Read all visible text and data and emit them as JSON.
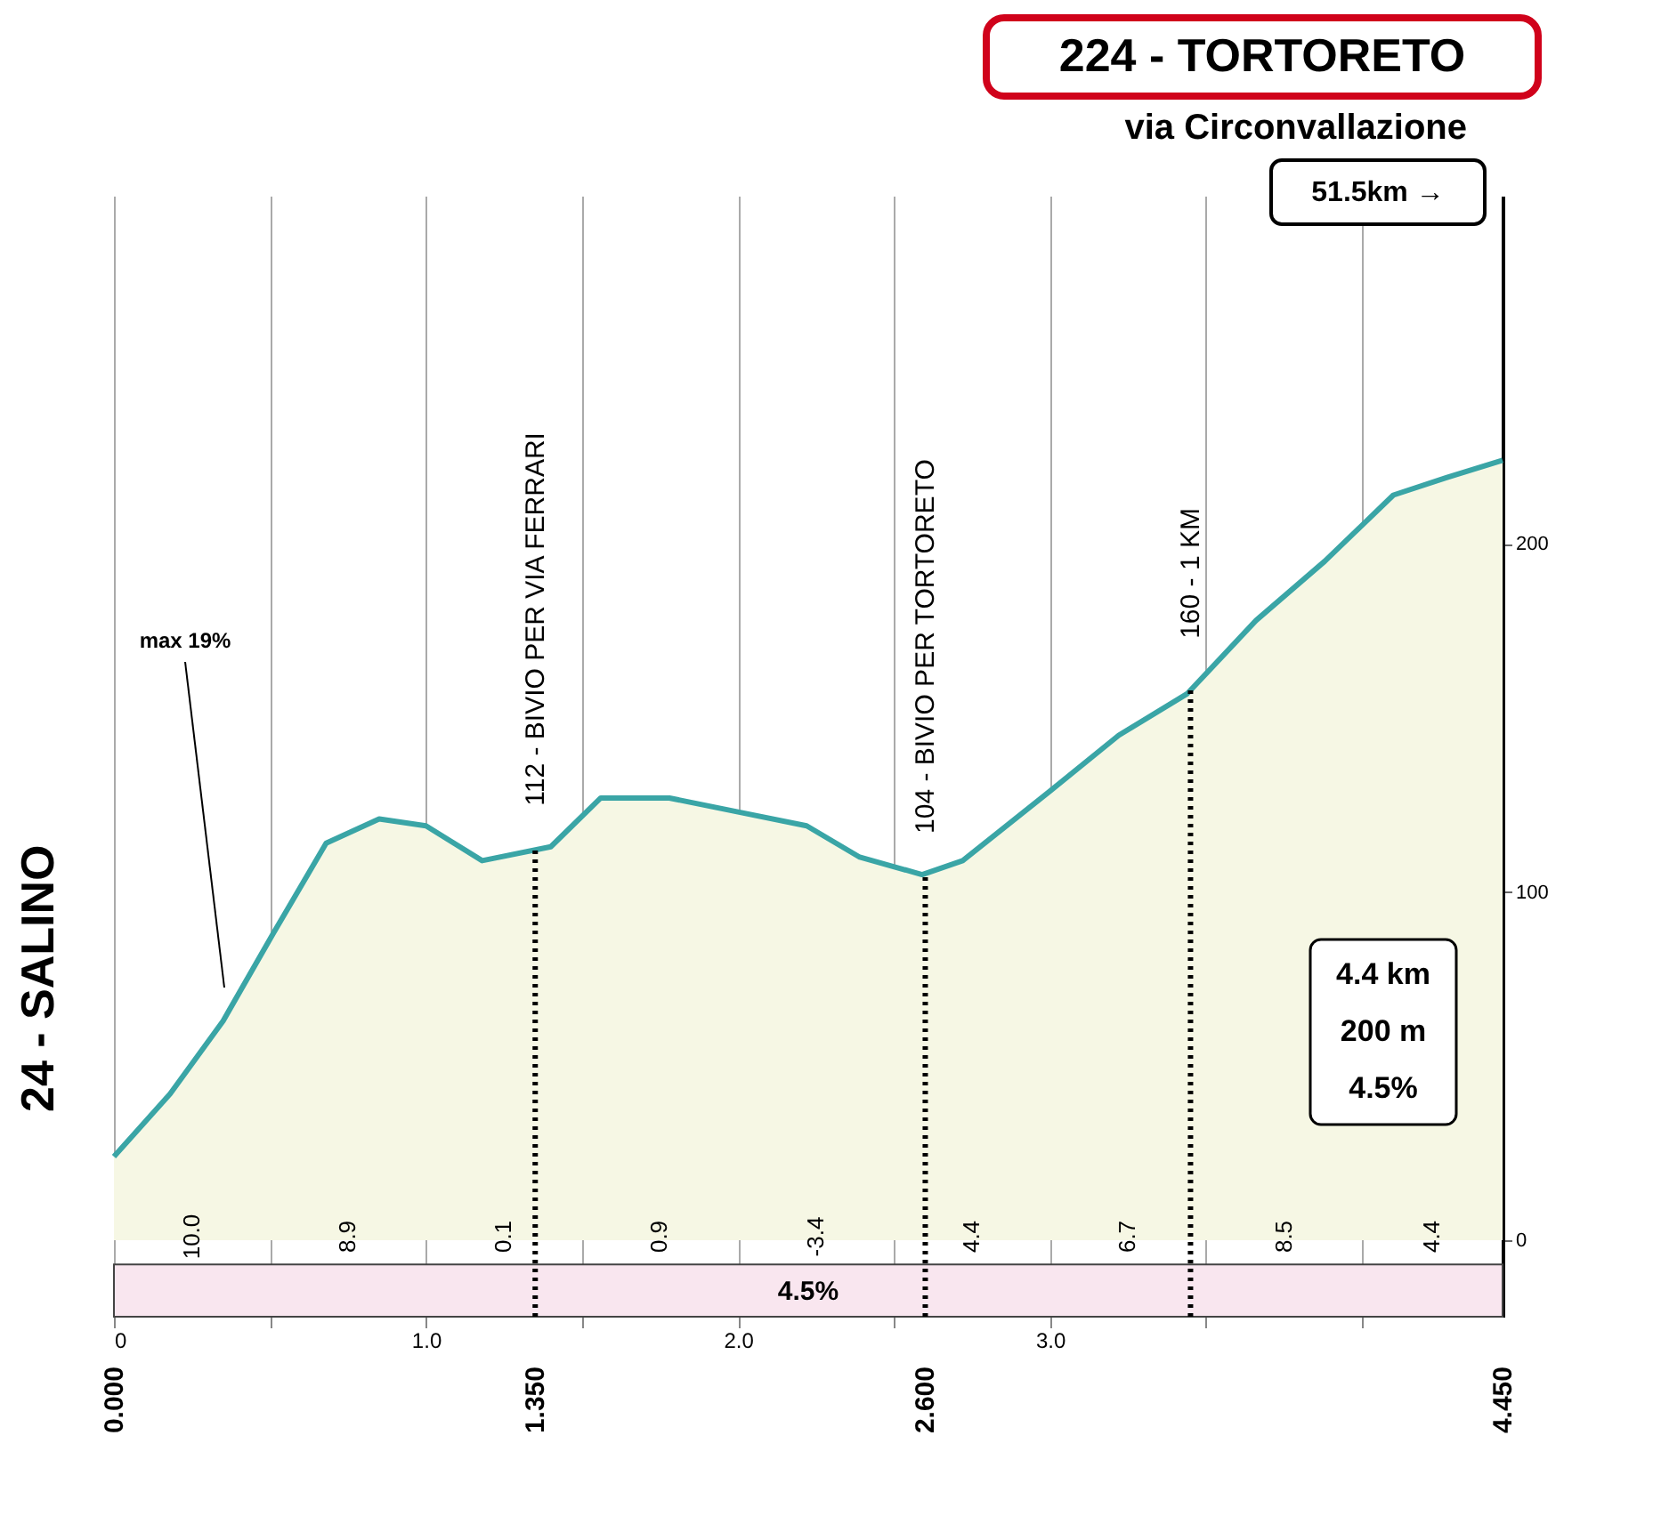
{
  "chart_data": {
    "type": "area",
    "title": "224 - TORTORETO",
    "subtitle": "via Circonvallazione",
    "x": [
      0,
      0.18,
      0.35,
      0.51,
      0.68,
      0.85,
      1.0,
      1.18,
      1.4,
      1.56,
      1.78,
      2.0,
      2.22,
      2.39,
      2.59,
      2.72,
      3.0,
      3.22,
      3.44,
      3.66,
      3.88,
      4.1,
      4.27,
      4.45
    ],
    "series": [
      {
        "color": "#f6f7e4",
        "values": [
          24,
          42,
          63,
          88,
          114,
          121,
          119,
          109,
          113,
          127,
          127,
          123,
          119,
          110,
          105,
          109,
          129,
          145,
          157,
          178,
          195,
          214,
          219,
          224
        ]
      }
    ],
    "xlim": [
      0,
      4.45
    ],
    "ylim": [
      -22,
      300
    ],
    "xticks": [
      0,
      {
        "value": 0.5,
        "label": null
      },
      {
        "value": 1.0,
        "label": "1.0"
      },
      {
        "value": 1.5,
        "label": null
      },
      {
        "value": 2.0,
        "label": "2.0"
      },
      {
        "value": 2.5,
        "label": null
      },
      {
        "value": 3.0,
        "label": "3.0"
      },
      {
        "value": 3.5,
        "label": null
      },
      {
        "value": 4.0,
        "label": null
      }
    ],
    "yticks": [
      0,
      100,
      200
    ],
    "grid": "x",
    "ref_lines": [
      {
        "axis": "x",
        "value": 1.35,
        "label": "1.350",
        "line_style": "dotted"
      },
      {
        "axis": "x",
        "value": 2.6,
        "label": "2.600",
        "line_style": "dotted"
      },
      {
        "axis": "x",
        "value": 3.45,
        "label": null,
        "line_style": "dotted"
      }
    ],
    "bands": [
      {
        "axis": "y",
        "from": -22,
        "to": -7,
        "label": "4.5%",
        "color": "#f9e6ef"
      }
    ],
    "annotations": [
      {
        "text": "24 - SALINO",
        "x": 0,
        "y": 24
      },
      "max 19%",
      {
        "text": "112 - BIVIO PER VIA FERRARI",
        "x": 1.35,
        "y": 112
      },
      {
        "text": "104 - BIVIO PER TORTORETO",
        "x": 2.6,
        "y": 104
      },
      {
        "text": "160 - 1 KM",
        "x": 3.45,
        "y": 160
      },
      "10.0",
      "8.9",
      "0.1",
      "0.9",
      "-3.4",
      "4.4",
      "6.7",
      "8.5",
      "4.4",
      "0.000",
      "4.450",
      "51.5km →",
      "4.4 km",
      "200 m",
      "4.5%"
    ]
  }
}
